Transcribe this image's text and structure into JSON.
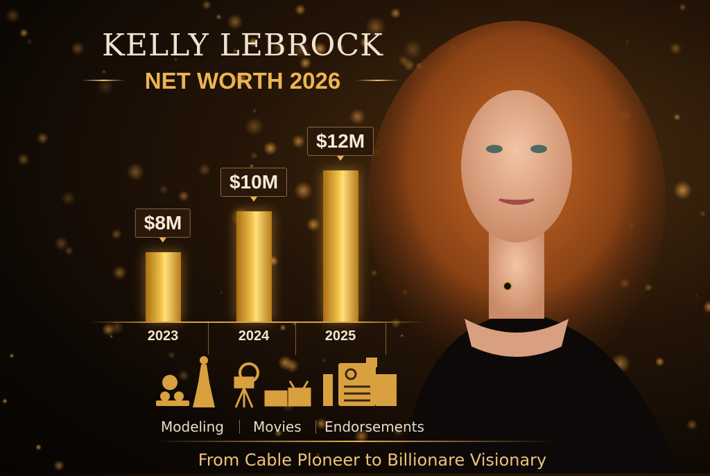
{
  "header": {
    "title": "KELLY LEBROCK",
    "subtitle": "NET WORTH 2026"
  },
  "chart_data": {
    "type": "bar",
    "categories": [
      "2023",
      "2024",
      "2025"
    ],
    "values": [
      8,
      10,
      12
    ],
    "data_labels": [
      "$8M",
      "$10M",
      "$12M"
    ],
    "title": "",
    "xlabel": "",
    "ylabel": "",
    "unit": "$M",
    "ylim": [
      4.6,
      13
    ],
    "grid": false,
    "bar_color": "#f3c44c"
  },
  "income_sources": [
    {
      "label": "Modeling",
      "icon": "model-figure-icon"
    },
    {
      "label": "Movies",
      "icon": "movie-camera-icon"
    },
    {
      "label": "Endorsements",
      "icon": "magazine-icon"
    }
  ],
  "tagline": "From Cable Ploneer to Billionare Visionary",
  "colors": {
    "gold": "#ecb452",
    "background": "#0d0804",
    "title_text": "#efe4cf"
  }
}
